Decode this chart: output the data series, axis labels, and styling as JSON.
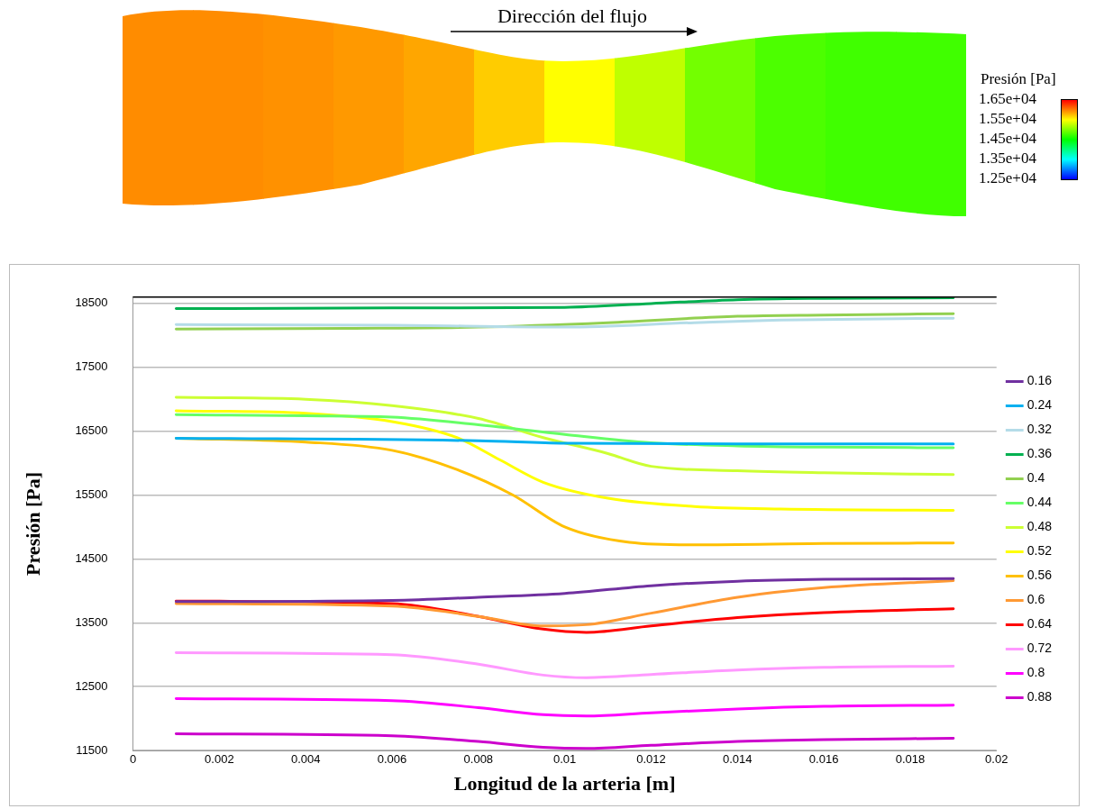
{
  "chart_data": [
    {
      "type": "heatmap",
      "annotations": [
        "Dirección del flujo"
      ],
      "categories": [
        null,
        null,
        null,
        null,
        null,
        null,
        null,
        null,
        null,
        null,
        null,
        null
      ],
      "y_categories": [
        null
      ],
      "cells": [
        [
          15950,
          15950,
          15930,
          15900,
          15850,
          15700,
          15500,
          15250,
          14950,
          14800,
          14750,
          14750
        ]
      ],
      "clabel": "Presión [Pa]",
      "clim": [
        12500,
        16500
      ],
      "cticks": [
        {
          "value": 16500,
          "label": "1.65e+04"
        },
        {
          "value": 15500,
          "label": "1.55e+04"
        },
        {
          "value": 14500,
          "label": "1.45e+04"
        },
        {
          "value": 13500,
          "label": "1.35e+04"
        },
        {
          "value": 12500,
          "label": "1.25e+04"
        }
      ]
    },
    {
      "type": "line",
      "xlabel": "Longitud de la arteria [m]",
      "ylabel": "Presión [Pa]",
      "xlim": [
        0,
        0.02
      ],
      "xticks": [
        0,
        0.002,
        0.004,
        0.006,
        0.008,
        0.01,
        0.012,
        0.014,
        0.016,
        0.018,
        0.02
      ],
      "ylim": [
        11500,
        18600
      ],
      "yticks": [
        11500,
        12500,
        13500,
        14500,
        15500,
        16500,
        17500,
        18500
      ],
      "grid": "y",
      "legend": "right",
      "marker": "none",
      "line_style": "solid",
      "series": [
        {
          "name": "0.16",
          "color": "#7030a0",
          "x": [
            0.001,
            0.006,
            0.008,
            0.01,
            0.012,
            0.014,
            0.016,
            0.019
          ],
          "values": [
            13830,
            13850,
            13900,
            13960,
            14080,
            14150,
            14180,
            14190
          ]
        },
        {
          "name": "0.24",
          "color": "#00b0f0",
          "x": [
            0.001,
            0.008,
            0.01,
            0.014,
            0.019
          ],
          "values": [
            16390,
            16350,
            16310,
            16300,
            16300
          ]
        },
        {
          "name": "0.32",
          "color": "#b4dce8",
          "x": [
            0.001,
            0.006,
            0.01,
            0.013,
            0.015,
            0.019
          ],
          "values": [
            18170,
            18160,
            18130,
            18200,
            18240,
            18270
          ]
        },
        {
          "name": "0.36",
          "color": "#00b050",
          "x": [
            0.001,
            0.006,
            0.01,
            0.012,
            0.014,
            0.016,
            0.019
          ],
          "values": [
            18420,
            18430,
            18440,
            18500,
            18560,
            18580,
            18590
          ]
        },
        {
          "name": "0.4",
          "color": "#92d050",
          "x": [
            0.001,
            0.005,
            0.008,
            0.011,
            0.014,
            0.016,
            0.019
          ],
          "values": [
            18100,
            18110,
            18130,
            18200,
            18300,
            18320,
            18340
          ]
        },
        {
          "name": "0.44",
          "color": "#66ff66",
          "x": [
            0.001,
            0.004,
            0.006,
            0.008,
            0.01,
            0.012,
            0.014,
            0.016,
            0.019
          ],
          "values": [
            16760,
            16740,
            16720,
            16600,
            16450,
            16320,
            16270,
            16250,
            16240
          ]
        },
        {
          "name": "0.48",
          "color": "#ccff33",
          "x": [
            0.001,
            0.004,
            0.006,
            0.008,
            0.0095,
            0.011,
            0.012,
            0.014,
            0.016,
            0.019
          ],
          "values": [
            17030,
            17000,
            16900,
            16700,
            16400,
            16150,
            15950,
            15880,
            15850,
            15820
          ]
        },
        {
          "name": "0.52",
          "color": "#ffff00",
          "x": [
            0.001,
            0.004,
            0.006,
            0.0075,
            0.0085,
            0.0095,
            0.011,
            0.013,
            0.015,
            0.019
          ],
          "values": [
            16820,
            16780,
            16650,
            16400,
            16050,
            15700,
            15450,
            15320,
            15280,
            15260
          ]
        },
        {
          "name": "0.56",
          "color": "#ffc000",
          "x": [
            0.001,
            0.004,
            0.006,
            0.0075,
            0.0088,
            0.01,
            0.0115,
            0.013,
            0.016,
            0.019
          ],
          "values": [
            16390,
            16330,
            16200,
            15900,
            15500,
            15000,
            14760,
            14720,
            14740,
            14750
          ]
        },
        {
          "name": "0.6",
          "color": "#ff9933",
          "x": [
            0.001,
            0.006,
            0.008,
            0.0095,
            0.0105,
            0.012,
            0.014,
            0.016,
            0.019
          ],
          "values": [
            13800,
            13760,
            13600,
            13450,
            13470,
            13650,
            13900,
            14050,
            14160
          ]
        },
        {
          "name": "0.64",
          "color": "#ff0000",
          "x": [
            0.001,
            0.006,
            0.008,
            0.0095,
            0.0105,
            0.012,
            0.014,
            0.016,
            0.019
          ],
          "values": [
            13840,
            13800,
            13600,
            13400,
            13350,
            13450,
            13580,
            13660,
            13720
          ]
        },
        {
          "name": "0.72",
          "color": "#ff99ff",
          "x": [
            0.001,
            0.006,
            0.008,
            0.0095,
            0.0105,
            0.012,
            0.014,
            0.016,
            0.019
          ],
          "values": [
            13030,
            13000,
            12850,
            12680,
            12640,
            12690,
            12760,
            12800,
            12820
          ]
        },
        {
          "name": "0.8",
          "color": "#ff00ff",
          "x": [
            0.001,
            0.006,
            0.008,
            0.0095,
            0.0105,
            0.012,
            0.014,
            0.016,
            0.019
          ],
          "values": [
            12310,
            12280,
            12170,
            12060,
            12040,
            12090,
            12150,
            12190,
            12210
          ]
        },
        {
          "name": "0.88",
          "color": "#cc00cc",
          "x": [
            0.001,
            0.006,
            0.008,
            0.0095,
            0.0105,
            0.012,
            0.014,
            0.016,
            0.019
          ],
          "values": [
            11760,
            11730,
            11640,
            11550,
            11530,
            11580,
            11640,
            11670,
            11690
          ]
        }
      ]
    }
  ]
}
